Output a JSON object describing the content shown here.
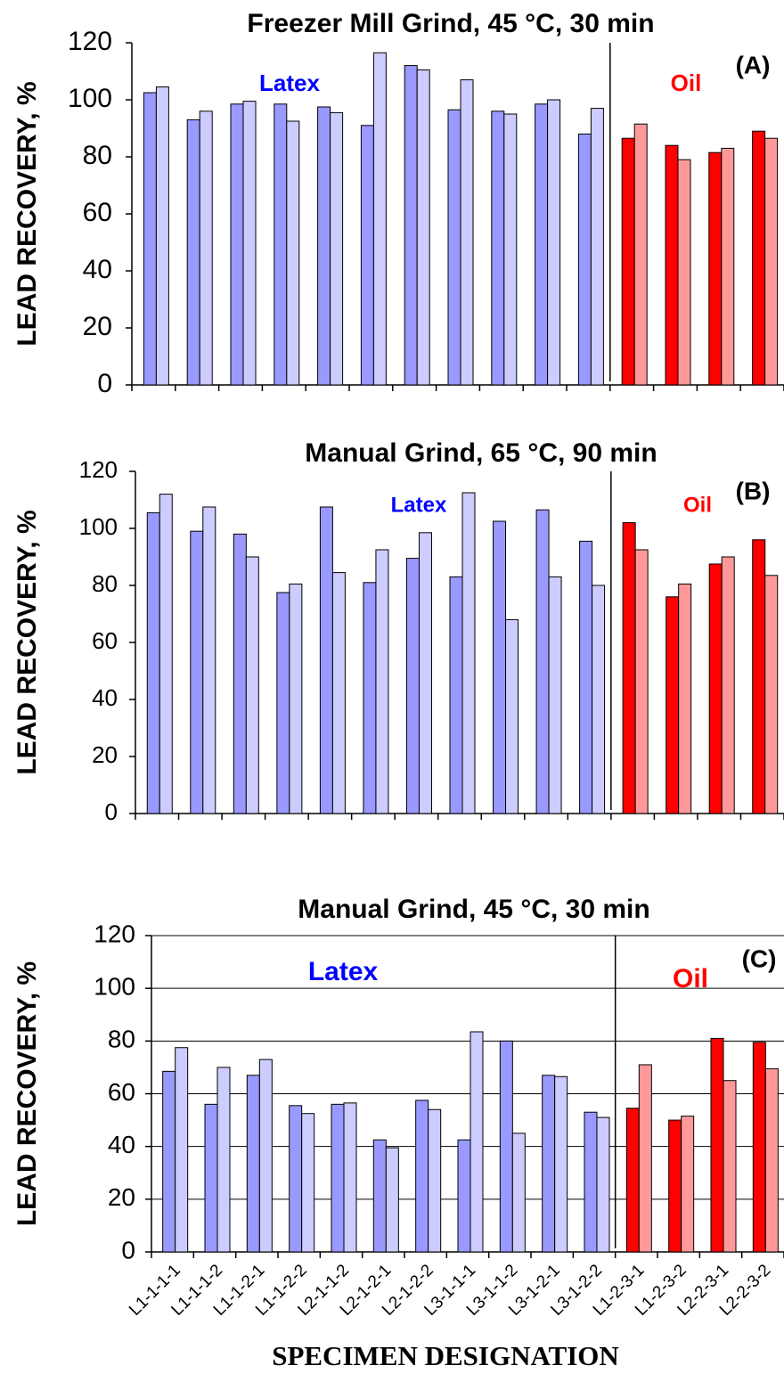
{
  "chart_data": [
    {
      "type": "bar",
      "title": "Freezer Mill Grind, 45 °C, 30 min",
      "y_label": "LEAD RECOVERY, %",
      "ylim": [
        0,
        120
      ],
      "yticks": [
        0,
        20,
        40,
        60,
        80,
        100,
        120
      ],
      "grid": false,
      "annotations": [
        {
          "text": "Latex",
          "color": "#0000ff"
        },
        {
          "text": "Oil",
          "color": "#ff0000"
        },
        {
          "text": "(A)",
          "color": "#000000"
        }
      ],
      "series": [
        {
          "values": [
            102.5,
            93,
            98.5,
            98.5,
            97.5,
            91,
            112,
            96.5,
            96,
            98.5,
            88,
            86.5,
            84,
            81.5,
            89
          ],
          "colors": [
            "#9999ff",
            "#9999ff",
            "#9999ff",
            "#9999ff",
            "#9999ff",
            "#9999ff",
            "#9999ff",
            "#9999ff",
            "#9999ff",
            "#9999ff",
            "#9999ff",
            "#ff0000",
            "#ff0000",
            "#ff0000",
            "#ff0000"
          ]
        },
        {
          "values": [
            104.5,
            96,
            99.5,
            92.5,
            95.5,
            116.5,
            110.5,
            107,
            95,
            100,
            97,
            91.5,
            79,
            83,
            86.5
          ],
          "colors": [
            "#ccccff",
            "#ccccff",
            "#ccccff",
            "#ccccff",
            "#ccccff",
            "#ccccff",
            "#ccccff",
            "#ccccff",
            "#ccccff",
            "#ccccff",
            "#ccccff",
            "#ff9999",
            "#ff9999",
            "#ff9999",
            "#ff9999"
          ]
        }
      ]
    },
    {
      "type": "bar",
      "title": "Manual Grind, 65 °C, 90 min",
      "y_label": "LEAD RECOVERY, %",
      "ylim": [
        0,
        120
      ],
      "yticks": [
        0,
        20,
        40,
        60,
        80,
        100,
        120
      ],
      "grid": false,
      "annotations": [
        {
          "text": "Latex",
          "color": "#0000ff"
        },
        {
          "text": "Oil",
          "color": "#ff0000"
        },
        {
          "text": "(B)",
          "color": "#000000"
        }
      ],
      "series": [
        {
          "values": [
            105.5,
            99,
            98,
            77.5,
            107.5,
            81,
            89.5,
            83,
            102.5,
            106.5,
            95.5,
            102,
            76,
            87.5,
            96
          ],
          "colors": [
            "#9999ff",
            "#9999ff",
            "#9999ff",
            "#9999ff",
            "#9999ff",
            "#9999ff",
            "#9999ff",
            "#9999ff",
            "#9999ff",
            "#9999ff",
            "#9999ff",
            "#ff0000",
            "#ff0000",
            "#ff0000",
            "#ff0000"
          ]
        },
        {
          "values": [
            112,
            107.5,
            90,
            80.5,
            84.5,
            92.5,
            98.5,
            112.5,
            68,
            83,
            80,
            92.5,
            80.5,
            90,
            83.5
          ],
          "colors": [
            "#ccccff",
            "#ccccff",
            "#ccccff",
            "#ccccff",
            "#ccccff",
            "#ccccff",
            "#ccccff",
            "#ccccff",
            "#ccccff",
            "#ccccff",
            "#ccccff",
            "#ff9999",
            "#ff9999",
            "#ff9999",
            "#ff9999"
          ]
        }
      ]
    },
    {
      "type": "bar",
      "title": "Manual Grind, 45 °C, 30 min",
      "y_label": "LEAD RECOVERY, %",
      "x_label": "SPECIMEN DESIGNATION",
      "ylim": [
        0,
        120
      ],
      "yticks": [
        0,
        20,
        40,
        60,
        80,
        100,
        120
      ],
      "grid": true,
      "categories": [
        "L1-1-1-1",
        "L1-1-1-2",
        "L1-1-2-1",
        "L1-1-2-2",
        "L2-1-1-2",
        "L2-1-2-1",
        "L2-1-2-2",
        "L3-1-1-1",
        "L3-1-1-2",
        "L3-1-2-1",
        "L3-1-2-2",
        "L1-2-3-1",
        "L1-2-3-2",
        "L2-2-3-1",
        "L2-2-3-2"
      ],
      "annotations": [
        {
          "text": "Latex",
          "color": "#0000ff"
        },
        {
          "text": "Oil",
          "color": "#ff0000"
        },
        {
          "text": "(C)",
          "color": "#000000"
        }
      ],
      "series": [
        {
          "values": [
            68.5,
            56,
            67,
            55.5,
            56,
            42.5,
            57.5,
            42.5,
            80,
            67,
            53,
            54.5,
            50,
            81,
            79.5
          ],
          "colors": [
            "#9999ff",
            "#9999ff",
            "#9999ff",
            "#9999ff",
            "#9999ff",
            "#9999ff",
            "#9999ff",
            "#9999ff",
            "#9999ff",
            "#9999ff",
            "#9999ff",
            "#ff0000",
            "#ff0000",
            "#ff0000",
            "#ff0000"
          ]
        },
        {
          "values": [
            77.5,
            70,
            73,
            52.5,
            56.5,
            39.5,
            54,
            83.5,
            45,
            66.5,
            51,
            71,
            51.5,
            65,
            69.5
          ],
          "colors": [
            "#ccccff",
            "#ccccff",
            "#ccccff",
            "#ccccff",
            "#ccccff",
            "#ccccff",
            "#ccccff",
            "#ccccff",
            "#ccccff",
            "#ccccff",
            "#ccccff",
            "#ff9999",
            "#ff9999",
            "#ff9999",
            "#ff9999"
          ]
        }
      ]
    }
  ]
}
